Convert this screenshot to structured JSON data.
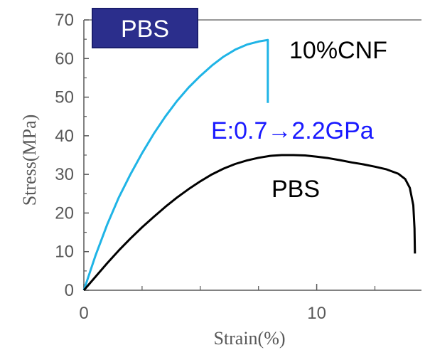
{
  "chart_data": {
    "type": "line",
    "xlabel": "Strain(%)",
    "ylabel": "Stress(MPa)",
    "xlim": [
      0,
      14.5
    ],
    "ylim": [
      0,
      70
    ],
    "x_ticks": [
      0,
      10
    ],
    "x_minor_ticks": [
      2.5,
      5,
      7.5,
      12.5
    ],
    "y_ticks": [
      0,
      10,
      20,
      30,
      40,
      50,
      60,
      70
    ],
    "grid": false,
    "top_line": true,
    "series": [
      {
        "color": "#1fb4e6",
        "points": [
          [
            0,
            0
          ],
          [
            0.5,
            9
          ],
          [
            1,
            17
          ],
          [
            1.5,
            24
          ],
          [
            2,
            30
          ],
          [
            2.5,
            35.5
          ],
          [
            3,
            40.5
          ],
          [
            3.5,
            45
          ],
          [
            4,
            49
          ],
          [
            4.5,
            52.5
          ],
          [
            5,
            55.5
          ],
          [
            5.5,
            58.2
          ],
          [
            6,
            60.5
          ],
          [
            6.5,
            62.3
          ],
          [
            7,
            63.6
          ],
          [
            7.5,
            64.4
          ],
          [
            7.9,
            64.8
          ],
          [
            7.9,
            48.5
          ]
        ]
      },
      {
        "color": "#000000",
        "points": [
          [
            0,
            0
          ],
          [
            0.5,
            3.5
          ],
          [
            1,
            7
          ],
          [
            1.5,
            10.3
          ],
          [
            2,
            13.4
          ],
          [
            2.5,
            16.3
          ],
          [
            3,
            19
          ],
          [
            3.5,
            21.6
          ],
          [
            4,
            24
          ],
          [
            4.5,
            26.2
          ],
          [
            5,
            28.2
          ],
          [
            5.5,
            30
          ],
          [
            6,
            31.5
          ],
          [
            6.5,
            32.7
          ],
          [
            7,
            33.6
          ],
          [
            7.5,
            34.3
          ],
          [
            8,
            34.8
          ],
          [
            8.5,
            35
          ],
          [
            9,
            35
          ],
          [
            9.5,
            34.9
          ],
          [
            10,
            34.6
          ],
          [
            10.5,
            34.2
          ],
          [
            11,
            33.7
          ],
          [
            11.5,
            33.1
          ],
          [
            12,
            32.6
          ],
          [
            12.5,
            32
          ],
          [
            13,
            31.3
          ],
          [
            13.5,
            30.2
          ],
          [
            13.8,
            28.8
          ],
          [
            14.0,
            26.5
          ],
          [
            14.15,
            22
          ],
          [
            14.2,
            16
          ],
          [
            14.22,
            9.5
          ]
        ]
      }
    ],
    "annotations": {
      "badge": "PBS",
      "top_right": "10%CNF",
      "modulus": "E:0.7→2.2GPa",
      "curve_label": "PBS"
    },
    "colors": {
      "badge_fill": "#2b2e8c",
      "badge_border": "#1b1e6e",
      "axis": "#595959",
      "modulus_text": "#1a1aff"
    }
  }
}
